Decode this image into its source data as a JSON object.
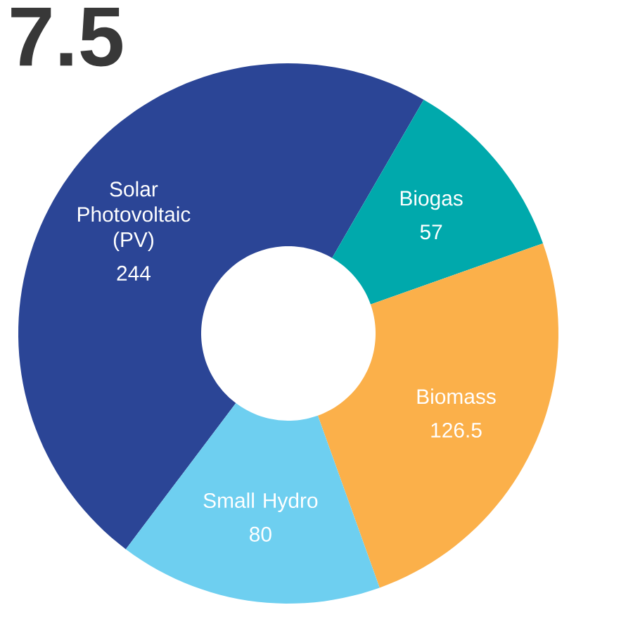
{
  "chart_data": {
    "type": "donut",
    "categories": [
      "Solar Photovoltaic (PV)",
      "Biogas",
      "Biomass",
      "Small Hydro"
    ],
    "values": [
      244,
      57,
      126.5,
      80
    ],
    "colors": [
      "#2b4596",
      "#00a9ac",
      "#fbb04a",
      "#6ecff0"
    ],
    "data_labels": true,
    "annotations": [
      "7.5"
    ]
  }
}
